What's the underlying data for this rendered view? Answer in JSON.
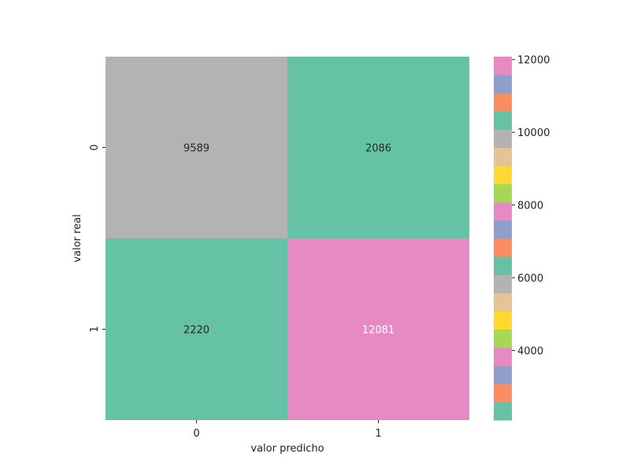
{
  "chart_data": {
    "type": "heatmap",
    "title": "",
    "xlabel": "valor predicho",
    "ylabel": "valor real",
    "x_categories": [
      "0",
      "1"
    ],
    "y_categories": [
      "0",
      "1"
    ],
    "matrix": [
      [
        9589,
        2086
      ],
      [
        2220,
        12081
      ]
    ],
    "colorbar": {
      "range": [
        2086,
        12081
      ],
      "ticks": [
        4000,
        6000,
        8000,
        10000,
        12000
      ],
      "tick_labels": [
        "4000",
        "6000",
        "8000",
        "10000",
        "12000"
      ],
      "palette": [
        "#66c2a5",
        "#fc8d62",
        "#8da0cb",
        "#e78ac3",
        "#a6d854",
        "#ffd92f",
        "#e5c494",
        "#b3b3b3"
      ],
      "bins": 20
    },
    "annotation_colors": {
      "dark": "#262626",
      "light": "#ffffff"
    },
    "grid": false,
    "legend": "colorbar-right"
  }
}
